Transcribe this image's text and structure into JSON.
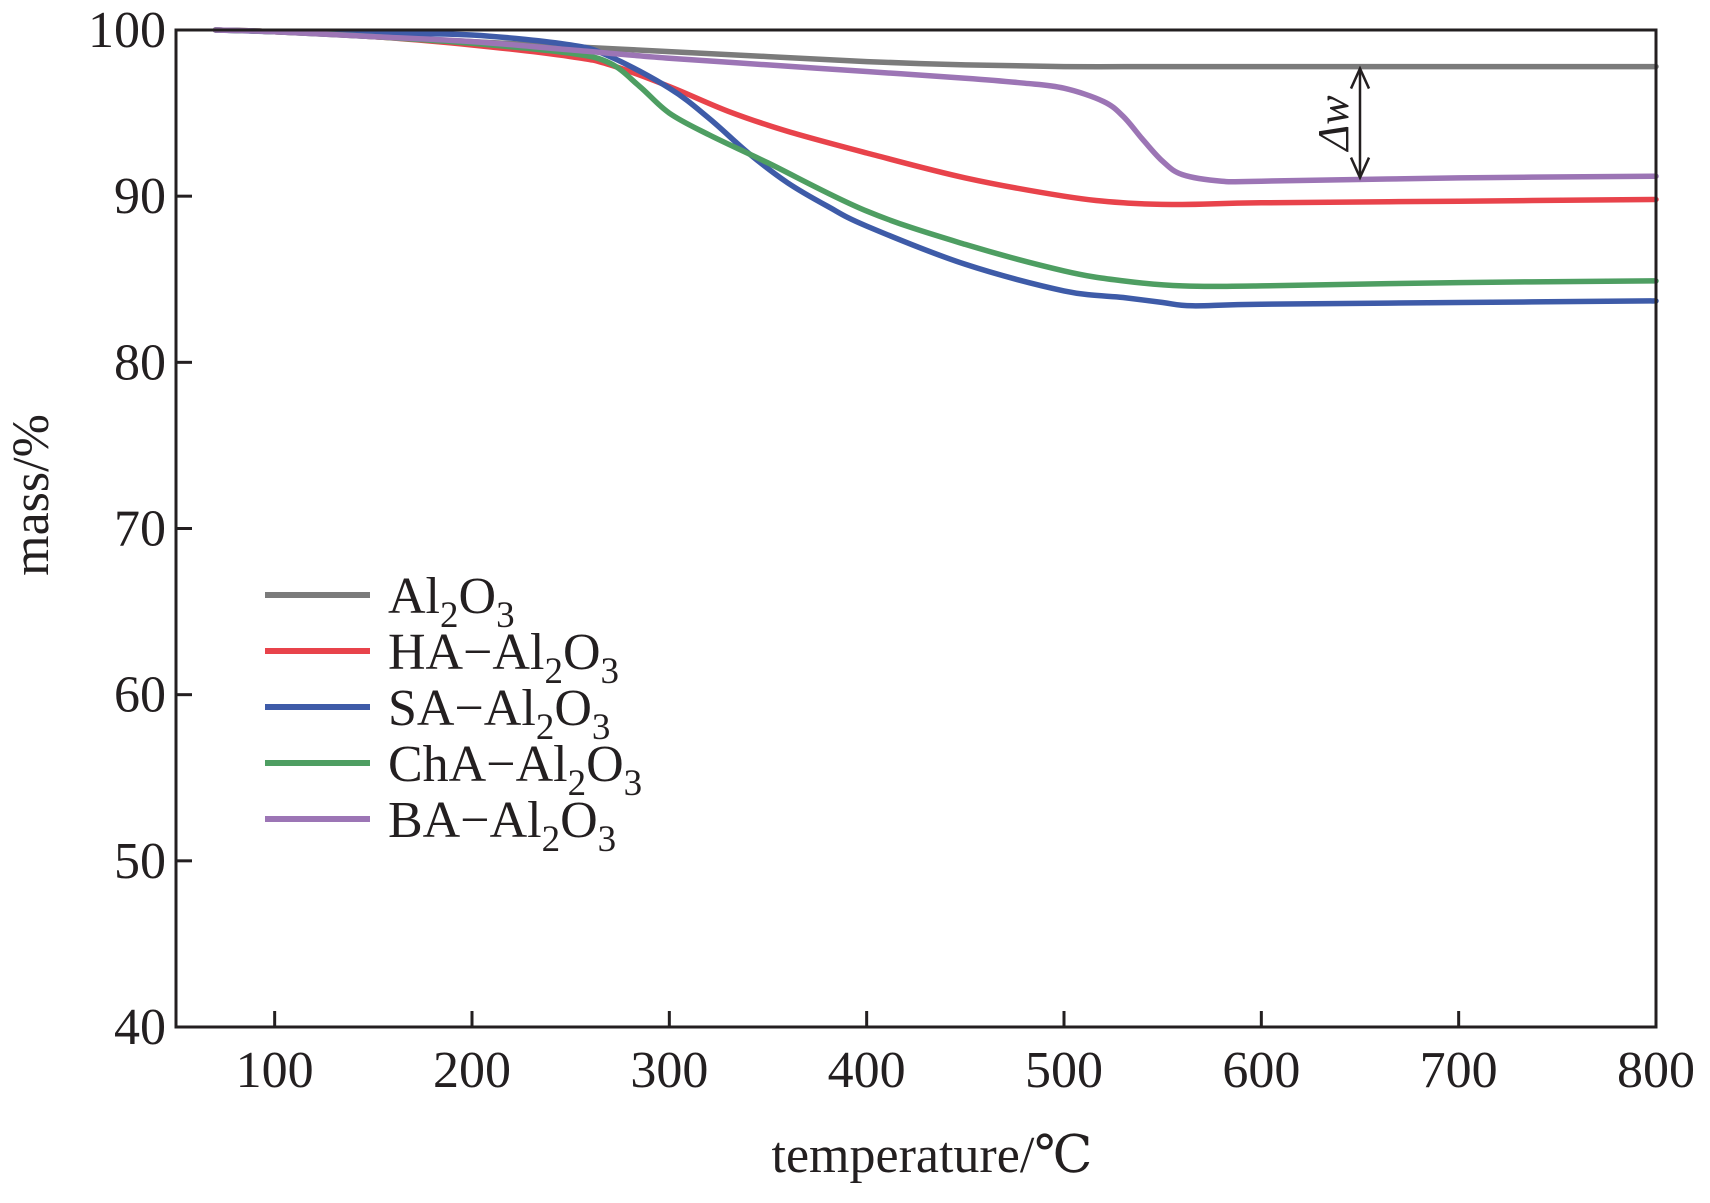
{
  "chart_data": {
    "type": "line",
    "title": "",
    "xlabel": "temperature/℃",
    "ylabel": "mass/%",
    "xlim": [
      50,
      800
    ],
    "ylim": [
      40,
      100
    ],
    "xticks": [
      100,
      200,
      300,
      400,
      500,
      600,
      700,
      800
    ],
    "yticks": [
      40,
      50,
      60,
      70,
      80,
      90,
      100
    ],
    "grid": false,
    "legend_position": "center-left",
    "series": [
      {
        "name": "Al2O3",
        "legend_parts": [
          "Al",
          "2",
          "O",
          "3"
        ],
        "color": "#7b7b7b",
        "x": [
          70,
          100,
          150,
          200,
          250,
          300,
          350,
          400,
          450,
          500,
          550,
          600,
          700,
          800
        ],
        "y": [
          100,
          99.9,
          99.6,
          99.3,
          99.0,
          98.7,
          98.4,
          98.1,
          97.9,
          97.8,
          97.8,
          97.8,
          97.8,
          97.8
        ]
      },
      {
        "name": "HA-Al2O3",
        "legend_parts": [
          "HA−Al",
          "2",
          "O",
          "3"
        ],
        "color": "#e8434b",
        "x": [
          70,
          100,
          150,
          200,
          250,
          270,
          300,
          330,
          360,
          400,
          450,
          500,
          530,
          560,
          600,
          700,
          800
        ],
        "y": [
          100,
          99.9,
          99.6,
          99.1,
          98.4,
          97.9,
          96.6,
          95.1,
          93.9,
          92.6,
          91.1,
          90.0,
          89.6,
          89.5,
          89.6,
          89.7,
          89.8
        ]
      },
      {
        "name": "SA-Al2O3",
        "legend_parts": [
          "SA−Al",
          "2",
          "O",
          "3"
        ],
        "color": "#3e5ba8",
        "x": [
          70,
          100,
          150,
          200,
          250,
          270,
          300,
          320,
          340,
          360,
          380,
          400,
          450,
          500,
          530,
          550,
          565,
          600,
          700,
          800
        ],
        "y": [
          100,
          99.9,
          99.8,
          99.7,
          99.1,
          98.4,
          96.5,
          94.7,
          92.6,
          90.8,
          89.4,
          88.2,
          85.9,
          84.3,
          83.9,
          83.6,
          83.4,
          83.5,
          83.6,
          83.7
        ]
      },
      {
        "name": "ChA-Al2O3",
        "legend_parts": [
          "ChA−Al",
          "2",
          "O",
          "3"
        ],
        "color": "#4e9e62",
        "x": [
          70,
          100,
          150,
          200,
          250,
          270,
          285,
          300,
          320,
          350,
          400,
          450,
          500,
          530,
          560,
          600,
          700,
          800
        ],
        "y": [
          100,
          99.9,
          99.6,
          99.2,
          98.6,
          98.0,
          96.6,
          95.0,
          93.7,
          92.0,
          89.1,
          87.1,
          85.5,
          84.9,
          84.6,
          84.6,
          84.8,
          84.9
        ]
      },
      {
        "name": "BA-Al2O3",
        "legend_parts": [
          "BA−Al",
          "2",
          "O",
          "3"
        ],
        "color": "#9c75b5",
        "x": [
          70,
          100,
          150,
          200,
          250,
          300,
          350,
          400,
          450,
          480,
          500,
          520,
          530,
          540,
          550,
          560,
          580,
          600,
          700,
          800
        ],
        "y": [
          100,
          99.9,
          99.6,
          99.3,
          98.8,
          98.3,
          97.9,
          97.5,
          97.1,
          96.8,
          96.5,
          95.7,
          94.8,
          93.4,
          92.1,
          91.3,
          90.9,
          90.9,
          91.1,
          91.2
        ]
      }
    ],
    "annotations": [
      {
        "text": "Δw",
        "from_series": "Al2O3",
        "to_series": "BA-Al2O3",
        "at_x": 650,
        "y_from": 97.8,
        "y_to": 91.0
      }
    ]
  }
}
